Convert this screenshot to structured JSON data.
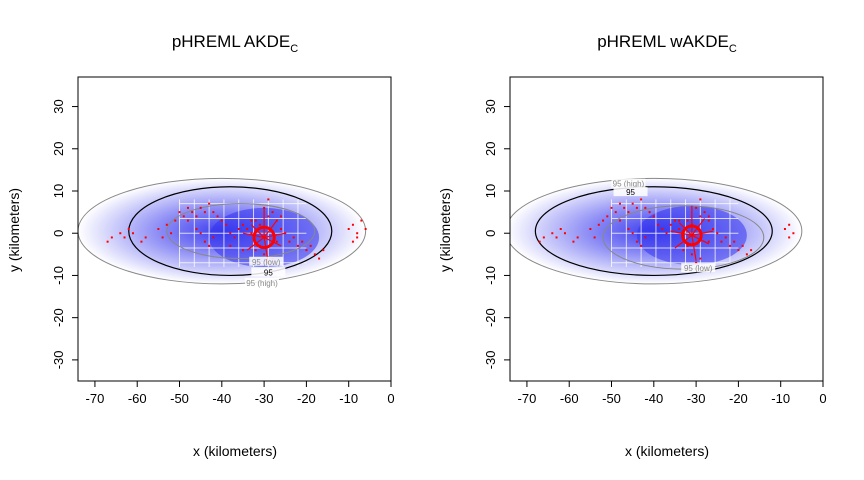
{
  "chart_data": [
    {
      "type": "heatmap",
      "title": "pHREML AKDE",
      "title_subscript": "C",
      "xlabel": "x (kilometers)",
      "ylabel": "y (kilometers)",
      "xlim": [
        -74,
        0
      ],
      "ylim": [
        -35,
        37
      ],
      "xticks": [
        -70,
        -60,
        -50,
        -40,
        -30,
        -20,
        -10,
        0
      ],
      "yticks": [
        -30,
        -20,
        -10,
        0,
        10,
        20,
        30
      ],
      "density_color": "#3333ee",
      "contours": [
        {
          "label": "95 (low)",
          "kind": "low",
          "color": "#888888",
          "cx": -35.5,
          "cy": 0.5,
          "rx": 17.5,
          "ry": 6.5
        },
        {
          "label": "95",
          "kind": "est",
          "color": "#000000",
          "cx": -38,
          "cy": 0.5,
          "rx": 24,
          "ry": 10.5
        },
        {
          "label": "95 (high)",
          "kind": "high",
          "color": "#888888",
          "cx": -40,
          "cy": 0.5,
          "rx": 34,
          "ry": 12.5
        }
      ],
      "contour_labels": [
        {
          "text": "95 (low)",
          "x": -29.5,
          "y": -7,
          "color": "#888888"
        },
        {
          "text": "95",
          "x": -29,
          "y": -9.5,
          "color": "#000000"
        },
        {
          "text": "95 (high)",
          "x": -30.5,
          "y": -12,
          "color": "#888888"
        }
      ],
      "centers": [
        {
          "x": -30,
          "y": -1,
          "r": 2.4
        }
      ],
      "points": [
        [
          -67,
          -2
        ],
        [
          -66,
          -1
        ],
        [
          -64,
          0
        ],
        [
          -63,
          -1
        ],
        [
          -62,
          1
        ],
        [
          -61,
          0
        ],
        [
          -59,
          -2
        ],
        [
          -58,
          -1
        ],
        [
          -55,
          1
        ],
        [
          -54,
          -1
        ],
        [
          -53,
          2
        ],
        [
          -52,
          0
        ],
        [
          -51,
          3
        ],
        [
          -50,
          5
        ],
        [
          -49,
          4
        ],
        [
          -48,
          6
        ],
        [
          -47,
          5
        ],
        [
          -46,
          4
        ],
        [
          -45,
          6
        ],
        [
          -44,
          5
        ],
        [
          -43,
          7
        ],
        [
          -42,
          5
        ],
        [
          -41,
          4
        ],
        [
          -40,
          3
        ],
        [
          -39,
          2
        ],
        [
          -38,
          0
        ],
        [
          -37,
          -1
        ],
        [
          -36,
          1
        ],
        [
          -35,
          2
        ],
        [
          -34,
          1
        ],
        [
          -33,
          0
        ],
        [
          -32,
          3
        ],
        [
          -31,
          2
        ],
        [
          -30,
          6
        ],
        [
          -29,
          8
        ],
        [
          -28,
          5
        ],
        [
          -27,
          3
        ],
        [
          -26,
          1
        ],
        [
          -25,
          0
        ],
        [
          -24,
          -2
        ],
        [
          -23,
          -1
        ],
        [
          -22,
          -3
        ],
        [
          -21,
          -2
        ],
        [
          -20,
          -4
        ],
        [
          -19,
          -3
        ],
        [
          -18,
          -5
        ],
        [
          -17,
          -6
        ],
        [
          -16,
          -4
        ],
        [
          -10,
          1
        ],
        [
          -9,
          2
        ],
        [
          -8,
          0
        ],
        [
          -7,
          3
        ],
        [
          -6,
          1
        ],
        [
          -9,
          -2
        ],
        [
          -8,
          -1
        ],
        [
          -29,
          4
        ],
        [
          -31,
          -3
        ],
        [
          -30,
          -5
        ],
        [
          -28,
          -6
        ],
        [
          -32,
          -4
        ],
        [
          -29,
          -7
        ],
        [
          -27,
          -2
        ],
        [
          -33,
          3
        ],
        [
          -26,
          4
        ],
        [
          -44,
          -2
        ],
        [
          -45,
          0
        ],
        [
          -43,
          -3
        ],
        [
          -42,
          -1
        ],
        [
          -46,
          1
        ],
        [
          -48,
          3
        ],
        [
          -38,
          -3
        ],
        [
          -35,
          -4
        ]
      ]
    },
    {
      "type": "heatmap",
      "title": "pHREML wAKDE",
      "title_subscript": "C",
      "xlabel": "x (kilometers)",
      "ylabel": "y (kilometers)",
      "xlim": [
        -74,
        0
      ],
      "ylim": [
        -35,
        37
      ],
      "xticks": [
        -70,
        -60,
        -50,
        -40,
        -30,
        -20,
        -10,
        0
      ],
      "yticks": [
        -30,
        -20,
        -10,
        0,
        10,
        20,
        30
      ],
      "density_color": "#3333ee",
      "contours": [
        {
          "label": "95 (low)",
          "kind": "low",
          "color": "#888888",
          "cx": -33,
          "cy": -1,
          "rx": 19,
          "ry": 7.5
        },
        {
          "label": "95",
          "kind": "est",
          "color": "#000000",
          "cx": -40,
          "cy": 0.5,
          "rx": 28,
          "ry": 10.5
        },
        {
          "label": "95 (high)",
          "kind": "high",
          "color": "#888888",
          "cx": -40,
          "cy": 0.5,
          "rx": 35,
          "ry": 12.5
        }
      ],
      "contour_labels": [
        {
          "text": "95 (high)",
          "x": -46,
          "y": 11.5,
          "color": "#888888"
        },
        {
          "text": "95",
          "x": -45.5,
          "y": 9.5,
          "color": "#000000"
        },
        {
          "text": "95 (low)",
          "x": -29.5,
          "y": -8.5,
          "color": "#888888"
        }
      ],
      "centers": [
        {
          "x": -31,
          "y": -0.5,
          "r": 2.2
        }
      ],
      "points": [
        [
          -67,
          -2
        ],
        [
          -66,
          -1
        ],
        [
          -64,
          0
        ],
        [
          -63,
          -1
        ],
        [
          -62,
          1
        ],
        [
          -61,
          0
        ],
        [
          -59,
          -2
        ],
        [
          -58,
          -1
        ],
        [
          -55,
          1
        ],
        [
          -54,
          -1
        ],
        [
          -53,
          2
        ],
        [
          -52,
          3
        ],
        [
          -51,
          4
        ],
        [
          -50,
          6
        ],
        [
          -49,
          5
        ],
        [
          -48,
          7
        ],
        [
          -47,
          6
        ],
        [
          -46,
          5
        ],
        [
          -45,
          7
        ],
        [
          -44,
          6
        ],
        [
          -43,
          8
        ],
        [
          -42,
          6
        ],
        [
          -41,
          5
        ],
        [
          -40,
          4
        ],
        [
          -39,
          2
        ],
        [
          -38,
          1
        ],
        [
          -37,
          0
        ],
        [
          -36,
          2
        ],
        [
          -35,
          3
        ],
        [
          -34,
          1
        ],
        [
          -33,
          0
        ],
        [
          -32,
          3
        ],
        [
          -31,
          2
        ],
        [
          -30,
          6
        ],
        [
          -29,
          8
        ],
        [
          -28,
          5
        ],
        [
          -27,
          3
        ],
        [
          -26,
          1
        ],
        [
          -25,
          0
        ],
        [
          -24,
          -2
        ],
        [
          -23,
          -1
        ],
        [
          -22,
          -3
        ],
        [
          -21,
          -2
        ],
        [
          -20,
          -4
        ],
        [
          -19,
          -3
        ],
        [
          -18,
          -5
        ],
        [
          -17,
          -4
        ],
        [
          -9,
          1
        ],
        [
          -8,
          2
        ],
        [
          -7,
          0
        ],
        [
          -8,
          -1
        ],
        [
          -29,
          4
        ],
        [
          -32,
          -3
        ],
        [
          -31,
          -5
        ],
        [
          -29,
          -6
        ],
        [
          -33,
          -4
        ],
        [
          -30,
          -7
        ],
        [
          -27,
          -2
        ],
        [
          -34,
          3
        ],
        [
          -27,
          4
        ],
        [
          -44,
          -2
        ],
        [
          -45,
          0
        ],
        [
          -43,
          -3
        ],
        [
          -42,
          -1
        ],
        [
          -46,
          1
        ],
        [
          -48,
          3
        ]
      ]
    }
  ]
}
